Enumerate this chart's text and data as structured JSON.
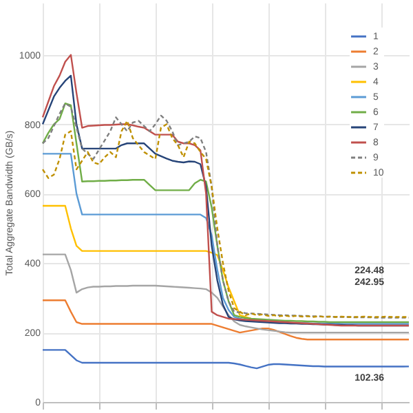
{
  "chart_data": {
    "type": "line",
    "ylabel": "Total Aggregate Bandwidth (GB/s)",
    "categories": [
      null,
      null,
      null,
      null,
      null,
      null,
      null,
      null,
      null,
      null,
      null,
      null,
      null,
      null,
      null,
      null,
      null,
      null,
      null,
      null,
      null,
      null,
      null,
      null,
      null,
      null,
      null,
      null,
      null,
      null,
      null,
      null,
      null,
      null,
      null,
      null,
      null,
      null,
      null,
      null,
      null,
      null,
      null,
      null,
      null,
      null,
      null,
      null,
      null,
      null,
      null,
      null,
      null,
      null,
      null,
      null,
      null,
      null,
      null,
      null,
      null,
      null,
      null,
      null,
      null,
      null
    ],
    "ylim": [
      0,
      1150
    ],
    "yticks": [
      0,
      200,
      400,
      600,
      800,
      1000
    ],
    "grid": true,
    "legend": "top right",
    "tick_labels": "y",
    "series": [
      {
        "name": "1",
        "color": "#4472c4",
        "line_style": "solid",
        "values": [
          150,
          150,
          150,
          150,
          150,
          135,
          120,
          113,
          113,
          113,
          113,
          113,
          113,
          113,
          113,
          113,
          113,
          113,
          113,
          113,
          113,
          113,
          113,
          113,
          113,
          113,
          113,
          113,
          113,
          113,
          113,
          113,
          113,
          113,
          111,
          108,
          104,
          100,
          97,
          102,
          107,
          109,
          109,
          108,
          107,
          106,
          105,
          104,
          103,
          103,
          102,
          102,
          102,
          102,
          102,
          102,
          102,
          102,
          102,
          102,
          102,
          102,
          102,
          102,
          102,
          102.36
        ]
      },
      {
        "name": "2",
        "color": "#ed7d31",
        "line_style": "solid",
        "values": [
          293,
          293,
          293,
          293,
          293,
          260,
          230,
          225,
          225,
          225,
          225,
          225,
          225,
          225,
          225,
          225,
          225,
          225,
          225,
          225,
          225,
          225,
          225,
          225,
          225,
          225,
          225,
          225,
          225,
          225,
          225,
          220,
          215,
          210,
          205,
          200,
          203,
          206,
          209,
          212,
          212,
          208,
          202,
          196,
          190,
          185,
          182,
          180,
          180,
          180,
          180,
          180,
          180,
          180,
          180,
          180,
          180,
          180,
          180,
          180,
          180,
          180,
          180,
          180,
          180,
          180
        ]
      },
      {
        "name": "3",
        "color": "#a5a5a5",
        "line_style": "solid",
        "values": [
          425,
          425,
          425,
          425,
          425,
          380,
          315,
          325,
          330,
          332,
          332,
          333,
          333,
          334,
          334,
          334,
          335,
          335,
          335,
          335,
          335,
          334,
          333,
          332,
          331,
          330,
          329,
          328,
          327,
          325,
          315,
          300,
          275,
          250,
          232,
          222,
          218,
          215,
          212,
          209,
          207,
          205,
          203,
          201,
          200,
          200,
          200,
          200,
          200,
          200,
          200,
          200,
          200,
          200,
          200,
          200,
          200,
          200,
          200,
          200,
          200,
          200,
          200,
          200,
          200,
          200
        ]
      },
      {
        "name": "4",
        "color": "#ffc000",
        "line_style": "solid",
        "values": [
          565,
          565,
          565,
          565,
          565,
          500,
          450,
          435,
          435,
          435,
          435,
          435,
          435,
          435,
          435,
          435,
          435,
          435,
          435,
          435,
          435,
          435,
          435,
          435,
          435,
          435,
          435,
          435,
          435,
          435,
          430,
          423,
          380,
          330,
          290,
          250,
          245,
          240,
          236,
          232,
          null,
          null,
          null,
          null,
          null,
          null,
          null,
          null,
          null,
          null,
          null,
          null,
          null,
          null,
          null,
          null,
          null,
          null,
          null,
          null,
          null,
          null,
          null,
          null,
          null,
          null
        ]
      },
      {
        "name": "5",
        "color": "#5b9bd5",
        "line_style": "solid",
        "values": [
          715,
          715,
          715,
          715,
          715,
          715,
          600,
          540,
          540,
          540,
          540,
          540,
          540,
          540,
          540,
          540,
          540,
          540,
          540,
          540,
          540,
          540,
          540,
          540,
          540,
          540,
          540,
          540,
          540,
          530,
          480,
          380,
          300,
          265,
          245,
          240,
          236,
          234,
          233,
          232,
          231,
          230,
          229,
          228,
          228,
          227,
          227,
          227,
          226,
          226,
          226,
          226,
          226,
          225,
          225,
          225,
          225,
          225,
          225,
          225,
          225,
          225,
          225,
          225,
          225,
          225
        ]
      },
      {
        "name": "6",
        "color": "#70ad47",
        "line_style": "solid",
        "values": [
          745,
          775,
          800,
          815,
          860,
          855,
          745,
          635,
          636,
          636,
          637,
          637,
          638,
          638,
          639,
          639,
          640,
          640,
          640,
          625,
          610,
          610,
          610,
          610,
          610,
          610,
          610,
          630,
          640,
          635,
          560,
          450,
          350,
          290,
          250,
          245,
          242,
          240,
          239,
          238,
          237,
          236,
          235,
          234,
          234,
          233,
          233,
          232,
          232,
          231,
          231,
          230,
          230,
          230,
          230,
          230,
          230,
          230,
          230,
          230,
          230,
          230,
          230,
          230,
          230,
          230
        ]
      },
      {
        "name": "7",
        "color": "#264478",
        "line_style": "solid",
        "values": [
          800,
          840,
          880,
          905,
          925,
          940,
          800,
          730,
          730,
          730,
          730,
          730,
          730,
          730,
          740,
          745,
          745,
          745,
          745,
          730,
          715,
          708,
          701,
          695,
          692,
          690,
          693,
          692,
          685,
          620,
          450,
          350,
          280,
          245,
          238,
          235,
          233,
          232,
          231,
          230,
          229,
          228,
          227,
          227,
          226,
          226,
          225,
          225,
          224,
          224,
          223,
          223,
          222,
          222,
          221,
          221,
          220,
          220,
          220,
          220,
          220,
          220,
          220,
          220,
          220,
          220
        ]
      },
      {
        "name": "8",
        "color": "#c0504d",
        "line_style": "solid",
        "values": [
          820,
          865,
          910,
          940,
          980,
          1000,
          890,
          790,
          795,
          796,
          797,
          798,
          798,
          799,
          800,
          800,
          797,
          793,
          790,
          780,
          770,
          770,
          770,
          770,
          750,
          745,
          745,
          740,
          725,
          600,
          260,
          250,
          245,
          240,
          239,
          238,
          237,
          236,
          235,
          234,
          233,
          232,
          231,
          230,
          229,
          228,
          227,
          226,
          225,
          224,
          223,
          222,
          221,
          220,
          220,
          220,
          220,
          220,
          220,
          220,
          220,
          220,
          220,
          220,
          220,
          220
        ]
      },
      {
        "name": "9",
        "color": "#7f7f7f",
        "line_style": "dashed",
        "values": [
          745,
          760,
          795,
          830,
          860,
          850,
          790,
          730,
          715,
          700,
          727,
          753,
          780,
          820,
          800,
          780,
          805,
          810,
          795,
          780,
          800,
          825,
          810,
          780,
          740,
          745,
          750,
          765,
          760,
          720,
          620,
          450,
          350,
          290,
          260,
          258,
          256,
          255,
          254,
          253,
          252,
          251,
          250,
          250,
          249,
          249,
          248,
          248,
          247,
          247,
          246,
          246,
          245,
          245,
          245,
          244,
          244,
          244,
          244,
          243,
          243,
          243,
          243,
          243,
          243,
          242.95
        ]
      },
      {
        "name": "10",
        "color": "#bf9000",
        "line_style": "dashed",
        "values": [
          670,
          645,
          655,
          700,
          770,
          780,
          670,
          695,
          720,
          690,
          685,
          705,
          720,
          705,
          780,
          810,
          760,
          740,
          720,
          710,
          700,
          790,
          800,
          760,
          740,
          705,
          750,
          745,
          720,
          700,
          620,
          500,
          400,
          320,
          270,
          260,
          250,
          255,
          250,
          252,
          248,
          250,
          247,
          249,
          246,
          248,
          246,
          247,
          245,
          247,
          245,
          246,
          245,
          246,
          245,
          245,
          245,
          246,
          245,
          245,
          245,
          246,
          245,
          245,
          245,
          245
        ]
      }
    ],
    "annotations": [
      "224.48",
      "242.95",
      "102.36"
    ]
  }
}
